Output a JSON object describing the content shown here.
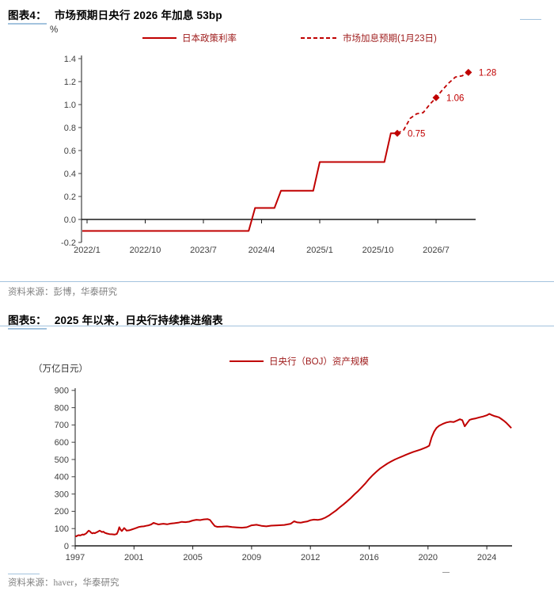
{
  "colors": {
    "line_red": "#C00000",
    "legend_text": "#9E1B1B",
    "rule_blue": "#A3C3DE",
    "axis_dark": "#1a1a1a",
    "axis_gray": "#404040",
    "tick_text": "#404040",
    "source_gray": "#808080"
  },
  "figures": [
    {
      "label": "图表4：",
      "title": "市场预期日央行 2026 年加息 53bp",
      "unit": "%",
      "legend": [
        {
          "label": "日本政策利率",
          "style": "solid"
        },
        {
          "label": "市场加息预期(1月23日)",
          "style": "dashed"
        }
      ],
      "source": "资料来源：彭博，华泰研究"
    },
    {
      "label": "图表5：",
      "title": "2025 年以来，日央行持续推进缩表",
      "unit": "（万亿日元）",
      "legend": [
        {
          "label": "日央行（BOJ）资产规模",
          "style": "solid"
        }
      ],
      "source": "资料来源：haver，华泰研究"
    }
  ],
  "chart_data": [
    {
      "type": "line",
      "title": "市场预期日央行 2026 年加息 53bp",
      "ylabel": "%",
      "ylim": [
        -0.2,
        1.4
      ],
      "ytick_step": 0.2,
      "xticks": [
        "2022/1",
        "2022/10",
        "2023/7",
        "2024/4",
        "2025/1",
        "2025/10",
        "2026/7"
      ],
      "grid": false,
      "legend_position": "top",
      "series": [
        {
          "name": "日本政策利率",
          "style": "solid",
          "points": [
            [
              "2022/1",
              -0.1
            ],
            [
              "2024/2",
              -0.1
            ],
            [
              "2024/3",
              0.1
            ],
            [
              "2024/6",
              0.1
            ],
            [
              "2024/7",
              0.25
            ],
            [
              "2024/12",
              0.25
            ],
            [
              "2025/1",
              0.5
            ],
            [
              "2025/11",
              0.5
            ],
            [
              "2025/12",
              0.75
            ],
            [
              "2026/1",
              0.75
            ]
          ]
        },
        {
          "name": "市场加息预期(1月23日)",
          "style": "dashed",
          "points": [
            [
              "2026/1",
              0.75
            ],
            [
              "2026/2",
              0.78
            ],
            [
              "2026/3",
              0.88
            ],
            [
              "2026/4",
              0.92
            ],
            [
              "2026/5",
              0.93
            ],
            [
              "2026/6",
              1.0
            ],
            [
              "2026/7",
              1.06
            ],
            [
              "2026/8",
              1.13
            ],
            [
              "2026/9",
              1.19
            ],
            [
              "2026/10",
              1.24
            ],
            [
              "2026/11",
              1.25
            ],
            [
              "2026/12",
              1.28
            ]
          ]
        }
      ],
      "annotations": [
        {
          "date": "2026/1",
          "value": 0.75,
          "label": "0.75"
        },
        {
          "date": "2026/7",
          "value": 1.06,
          "label": "1.06"
        },
        {
          "date": "2026/12",
          "value": 1.28,
          "label": "1.28"
        }
      ]
    },
    {
      "type": "line",
      "title": "2025 年以来，日央行持续推进缩表",
      "ylabel": "（万亿日元）",
      "ylim": [
        0,
        900
      ],
      "ytick_step": 100,
      "xticks": [
        1997,
        2001,
        2005,
        2009,
        2012,
        2016,
        2020,
        2024
      ],
      "grid": false,
      "legend_position": "top",
      "series": [
        {
          "name": "日央行（BOJ）资产规模",
          "style": "solid",
          "points": [
            [
              1997.0,
              57
            ],
            [
              1997.08,
              55
            ],
            [
              1997.17,
              60
            ],
            [
              1997.25,
              62
            ],
            [
              1997.33,
              60
            ],
            [
              1997.42,
              63
            ],
            [
              1997.5,
              66
            ],
            [
              1997.58,
              64
            ],
            [
              1997.67,
              68
            ],
            [
              1997.75,
              72
            ],
            [
              1997.83,
              80
            ],
            [
              1997.92,
              88
            ],
            [
              1998.0,
              84
            ],
            [
              1998.08,
              76
            ],
            [
              1998.17,
              72
            ],
            [
              1998.25,
              75
            ],
            [
              1998.33,
              73
            ],
            [
              1998.42,
              77
            ],
            [
              1998.5,
              80
            ],
            [
              1998.58,
              84
            ],
            [
              1998.67,
              88
            ],
            [
              1998.75,
              84
            ],
            [
              1998.83,
              80
            ],
            [
              1998.92,
              82
            ],
            [
              1999.0,
              76
            ],
            [
              1999.17,
              71
            ],
            [
              1999.33,
              68
            ],
            [
              1999.5,
              67
            ],
            [
              1999.67,
              65
            ],
            [
              1999.83,
              69
            ],
            [
              1999.92,
              85
            ],
            [
              2000.0,
              108
            ],
            [
              2000.08,
              95
            ],
            [
              2000.17,
              86
            ],
            [
              2000.25,
              94
            ],
            [
              2000.33,
              103
            ],
            [
              2000.42,
              96
            ],
            [
              2000.5,
              88
            ],
            [
              2000.67,
              90
            ],
            [
              2000.83,
              94
            ],
            [
              2001.0,
              99
            ],
            [
              2001.17,
              104
            ],
            [
              2001.33,
              109
            ],
            [
              2001.5,
              112
            ],
            [
              2001.67,
              113
            ],
            [
              2001.83,
              116
            ],
            [
              2002.0,
              119
            ],
            [
              2002.17,
              124
            ],
            [
              2002.33,
              133
            ],
            [
              2002.5,
              128
            ],
            [
              2002.67,
              124
            ],
            [
              2002.83,
              126
            ],
            [
              2003.0,
              128
            ],
            [
              2003.25,
              125
            ],
            [
              2003.5,
              129
            ],
            [
              2003.75,
              131
            ],
            [
              2004.0,
              134
            ],
            [
              2004.25,
              139
            ],
            [
              2004.5,
              137
            ],
            [
              2004.75,
              140
            ],
            [
              2005.0,
              147
            ],
            [
              2005.25,
              151
            ],
            [
              2005.5,
              149
            ],
            [
              2005.75,
              153
            ],
            [
              2006.0,
              155
            ],
            [
              2006.17,
              150
            ],
            [
              2006.33,
              132
            ],
            [
              2006.5,
              114
            ],
            [
              2006.67,
              110
            ],
            [
              2007.0,
              111
            ],
            [
              2007.33,
              113
            ],
            [
              2007.67,
              109
            ],
            [
              2008.0,
              107
            ],
            [
              2008.33,
              105
            ],
            [
              2008.67,
              108
            ],
            [
              2009.0,
              119
            ],
            [
              2009.25,
              122
            ],
            [
              2009.5,
              116
            ],
            [
              2009.75,
              113
            ],
            [
              2010.0,
              117
            ],
            [
              2010.33,
              119
            ],
            [
              2010.67,
              121
            ],
            [
              2011.0,
              128
            ],
            [
              2011.17,
              142
            ],
            [
              2011.33,
              136
            ],
            [
              2011.5,
              134
            ],
            [
              2011.67,
              138
            ],
            [
              2011.83,
              141
            ],
            [
              2012.0,
              148
            ],
            [
              2012.25,
              152
            ],
            [
              2012.5,
              150
            ],
            [
              2012.75,
              154
            ],
            [
              2013.0,
              163
            ],
            [
              2013.25,
              175
            ],
            [
              2013.5,
              190
            ],
            [
              2013.75,
              205
            ],
            [
              2014.0,
              223
            ],
            [
              2014.25,
              240
            ],
            [
              2014.5,
              258
            ],
            [
              2014.75,
              277
            ],
            [
              2015.0,
              298
            ],
            [
              2015.25,
              318
            ],
            [
              2015.5,
              340
            ],
            [
              2015.75,
              363
            ],
            [
              2016.0,
              388
            ],
            [
              2016.25,
              410
            ],
            [
              2016.5,
              430
            ],
            [
              2016.75,
              448
            ],
            [
              2017.0,
              463
            ],
            [
              2017.25,
              477
            ],
            [
              2017.5,
              489
            ],
            [
              2017.75,
              500
            ],
            [
              2018.0,
              509
            ],
            [
              2018.25,
              518
            ],
            [
              2018.5,
              527
            ],
            [
              2018.75,
              536
            ],
            [
              2019.0,
              544
            ],
            [
              2019.25,
              551
            ],
            [
              2019.5,
              558
            ],
            [
              2019.75,
              566
            ],
            [
              2019.92,
              572
            ],
            [
              2020.08,
              580
            ],
            [
              2020.25,
              628
            ],
            [
              2020.42,
              662
            ],
            [
              2020.58,
              683
            ],
            [
              2020.75,
              695
            ],
            [
              2021.0,
              706
            ],
            [
              2021.25,
              714
            ],
            [
              2021.5,
              719
            ],
            [
              2021.75,
              717
            ],
            [
              2022.0,
              726
            ],
            [
              2022.17,
              733
            ],
            [
              2022.33,
              728
            ],
            [
              2022.5,
              692
            ],
            [
              2022.67,
              712
            ],
            [
              2022.83,
              730
            ],
            [
              2023.0,
              734
            ],
            [
              2023.25,
              738
            ],
            [
              2023.5,
              744
            ],
            [
              2023.75,
              749
            ],
            [
              2024.0,
              756
            ],
            [
              2024.17,
              764
            ],
            [
              2024.33,
              758
            ],
            [
              2024.5,
              752
            ],
            [
              2024.67,
              748
            ],
            [
              2024.83,
              744
            ],
            [
              2025.0,
              734
            ],
            [
              2025.17,
              724
            ],
            [
              2025.33,
              712
            ],
            [
              2025.5,
              697
            ],
            [
              2025.58,
              690
            ],
            [
              2025.67,
              682
            ]
          ]
        }
      ]
    }
  ]
}
